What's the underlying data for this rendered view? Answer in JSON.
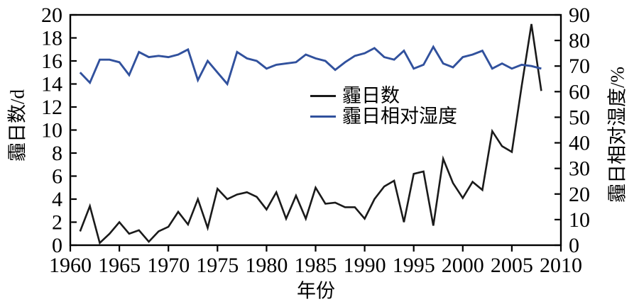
{
  "figure": {
    "background": "#ffffff",
    "axis_color": "#000000"
  },
  "chart_data": {
    "type": "line",
    "title": "",
    "x": [
      1961,
      1962,
      1963,
      1964,
      1965,
      1966,
      1967,
      1968,
      1969,
      1970,
      1971,
      1972,
      1973,
      1974,
      1975,
      1976,
      1977,
      1978,
      1979,
      1980,
      1981,
      1982,
      1983,
      1984,
      1985,
      1986,
      1987,
      1988,
      1989,
      1990,
      1991,
      1992,
      1993,
      1994,
      1995,
      1996,
      1997,
      1998,
      1999,
      2000,
      2001,
      2002,
      2003,
      2004,
      2005,
      2006,
      2007,
      2008
    ],
    "series": [
      {
        "name": "霾日数",
        "axis": "left",
        "color": "#1a1a1a",
        "values": [
          1.2,
          3.4,
          0.2,
          1.0,
          2.0,
          1.0,
          1.3,
          0.3,
          1.2,
          1.6,
          2.9,
          1.8,
          4.0,
          1.5,
          4.9,
          4.0,
          4.4,
          4.6,
          4.2,
          3.1,
          4.6,
          2.3,
          4.3,
          2.3,
          5.0,
          3.6,
          3.7,
          3.3,
          3.3,
          2.3,
          4.0,
          5.1,
          5.6,
          2.0,
          6.2,
          6.4,
          1.7,
          7.5,
          5.4,
          4.1,
          5.5,
          4.8,
          9.9,
          8.6,
          8.1,
          13.8,
          19.2,
          13.4
        ]
      },
      {
        "name": "霾日相对湿度",
        "axis": "right",
        "color": "#31519d",
        "values": [
          67.5,
          63.5,
          72.5,
          72.5,
          71.5,
          66.5,
          75.5,
          73.5,
          74,
          73.5,
          74.5,
          76.5,
          64.5,
          72,
          67.5,
          63,
          75.5,
          73,
          72,
          69,
          70.5,
          71,
          71.5,
          74.5,
          73,
          72,
          68.5,
          71.5,
          74,
          75,
          77,
          73.5,
          72.5,
          76,
          69,
          70.5,
          77.5,
          71,
          69.5,
          73.5,
          74.5,
          76,
          69,
          71,
          69,
          70.5,
          70,
          69
        ]
      }
    ],
    "x_axis": {
      "label": "年份",
      "min": 1960,
      "max": 2010,
      "ticks": [
        1960,
        1965,
        1970,
        1975,
        1980,
        1985,
        1990,
        1995,
        2000,
        2005,
        2010
      ]
    },
    "y_axis_left": {
      "label": "霾日数/d",
      "min": 0,
      "max": 20,
      "ticks": [
        0,
        2,
        4,
        6,
        8,
        10,
        12,
        14,
        16,
        18,
        20
      ]
    },
    "y_axis_right": {
      "label": "霾日相对湿度/%",
      "min": 0,
      "max": 90,
      "ticks": [
        0,
        10,
        20,
        30,
        40,
        50,
        60,
        70,
        80,
        90
      ]
    },
    "legend_position": "inside-center",
    "grid": false
  }
}
